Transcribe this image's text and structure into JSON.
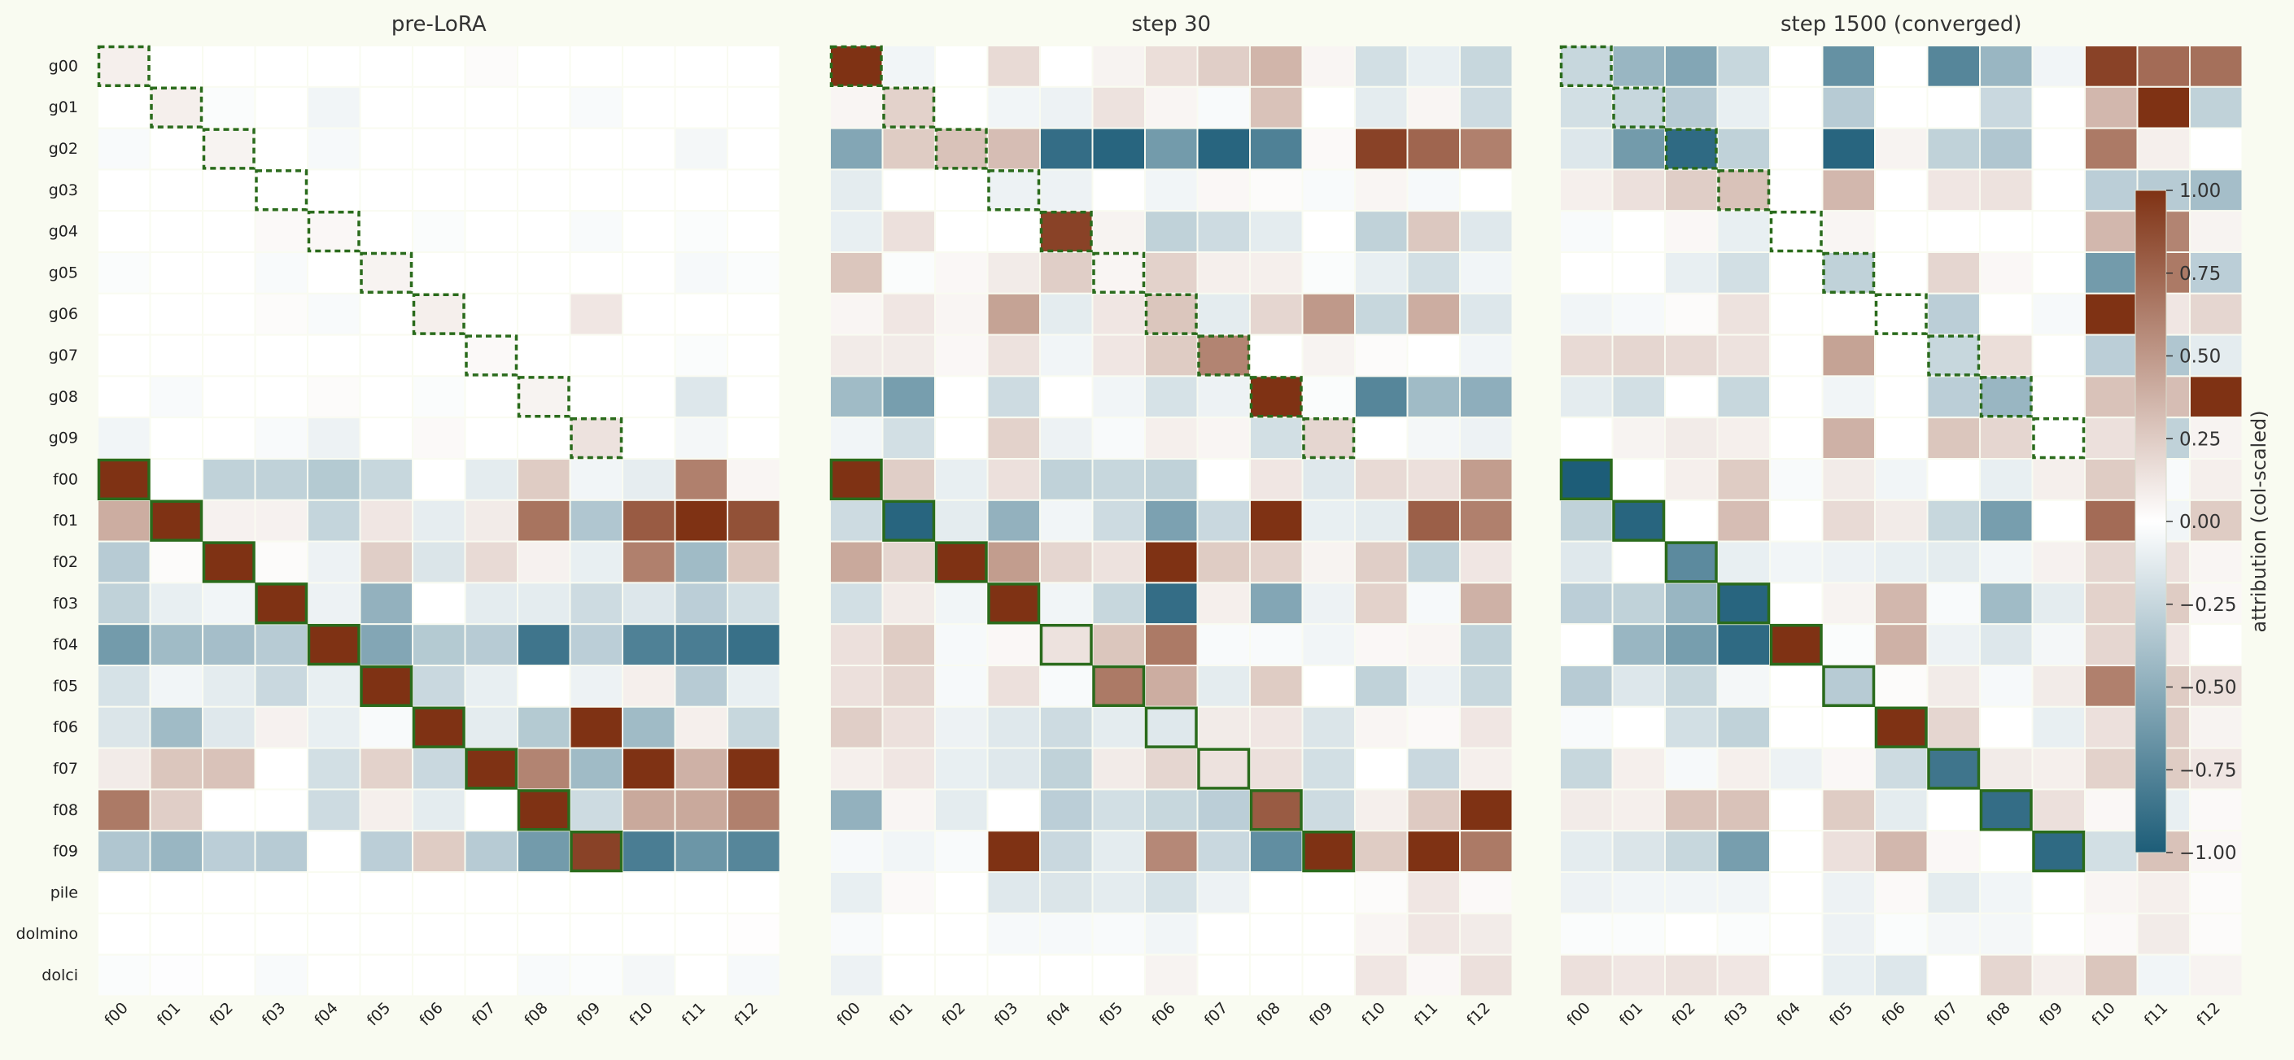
{
  "chart_data": {
    "type": "heatmap",
    "colormap": {
      "negative": "#1d5d78",
      "zero": "#ffffff",
      "positive": "#7f3214",
      "range": [
        -1.0,
        1.0
      ]
    },
    "highlight_color": "#2a6b1c",
    "rows": [
      "g00",
      "g01",
      "g02",
      "g03",
      "g04",
      "g05",
      "g06",
      "g07",
      "g08",
      "g09",
      "f00",
      "f01",
      "f02",
      "f03",
      "f04",
      "f05",
      "f06",
      "f07",
      "f08",
      "f09",
      "pile",
      "dolmino",
      "dolci"
    ],
    "columns": [
      "f00",
      "f01",
      "f02",
      "f03",
      "f04",
      "f05",
      "f06",
      "f07",
      "f08",
      "f09",
      "f10",
      "f11",
      "f12"
    ],
    "colorbar": {
      "label": "attribution (col-scaled)",
      "ticks": [
        "1.00",
        "0.75",
        "0.50",
        "0.25",
        "0.00",
        "−0.25",
        "−0.50",
        "−0.75",
        "−1.00"
      ],
      "tick_values": [
        1.0,
        0.75,
        0.5,
        0.25,
        0.0,
        -0.25,
        -0.5,
        -0.75,
        -1.0
      ],
      "range": [
        -1.0,
        1.0
      ]
    },
    "panels": [
      {
        "title": "pre-LoRA",
        "values": [
          [
            0.08,
            0,
            0,
            0,
            0,
            0,
            0,
            0.02,
            0,
            0,
            0,
            0,
            0
          ],
          [
            0,
            0.08,
            -0.02,
            0,
            -0.06,
            0,
            0,
            0,
            0,
            -0.03,
            0,
            0,
            0
          ],
          [
            -0.03,
            0,
            0.06,
            0,
            -0.04,
            0,
            0,
            0,
            0,
            0,
            0,
            -0.05,
            0
          ],
          [
            0,
            0,
            0,
            0,
            0,
            0,
            0,
            0,
            0,
            0,
            0,
            0,
            0
          ],
          [
            0,
            0,
            0,
            0.03,
            0.04,
            0,
            -0.02,
            0,
            0,
            -0.03,
            0,
            -0.02,
            0
          ],
          [
            -0.02,
            0,
            0,
            -0.03,
            0,
            0.06,
            0,
            0,
            0,
            0,
            0,
            -0.04,
            -0.02
          ],
          [
            0,
            0,
            0,
            0.02,
            -0.03,
            0,
            0.08,
            0,
            0,
            0.12,
            0,
            0,
            0
          ],
          [
            0,
            0,
            0,
            0,
            0,
            0,
            0,
            0.03,
            0,
            0,
            0,
            -0.02,
            0
          ],
          [
            0,
            -0.03,
            0,
            0,
            0.02,
            0,
            -0.02,
            0,
            0.06,
            0,
            0,
            -0.15,
            0
          ],
          [
            -0.06,
            0,
            0,
            -0.03,
            -0.08,
            0,
            0.03,
            0,
            0,
            0.14,
            0,
            -0.05,
            0
          ],
          [
            1.0,
            0,
            -0.28,
            -0.28,
            -0.33,
            -0.25,
            0,
            -0.12,
            0.25,
            -0.06,
            -0.11,
            0.62,
            0.05
          ],
          [
            0.4,
            1.0,
            0.07,
            0.07,
            -0.26,
            0.12,
            -0.11,
            0.1,
            0.68,
            -0.35,
            0.8,
            1.0,
            0.85
          ],
          [
            -0.32,
            0.02,
            1.0,
            0.02,
            -0.08,
            0.24,
            -0.16,
            0.18,
            0.07,
            -0.1,
            0.62,
            -0.42,
            0.28
          ],
          [
            -0.28,
            -0.1,
            -0.06,
            1.0,
            -0.08,
            -0.48,
            0,
            -0.12,
            -0.12,
            -0.22,
            -0.15,
            -0.3,
            -0.2
          ],
          [
            -0.62,
            -0.42,
            -0.4,
            -0.32,
            1.0,
            -0.55,
            -0.33,
            -0.32,
            -0.85,
            -0.3,
            -0.78,
            -0.8,
            -0.88
          ],
          [
            -0.18,
            -0.06,
            -0.12,
            -0.24,
            -0.1,
            1.0,
            -0.24,
            -0.1,
            0,
            -0.08,
            0.08,
            -0.32,
            -0.1
          ],
          [
            -0.16,
            -0.42,
            -0.14,
            0.07,
            -0.1,
            -0.03,
            1.0,
            -0.12,
            -0.33,
            1.0,
            -0.42,
            0.08,
            -0.25
          ],
          [
            0.1,
            0.28,
            0.3,
            0,
            -0.2,
            0.22,
            -0.24,
            1.0,
            0.6,
            -0.42,
            1.0,
            0.38,
            1.0
          ],
          [
            0.65,
            0.24,
            0,
            0,
            -0.22,
            0.08,
            -0.12,
            0,
            1.0,
            -0.22,
            0.42,
            0.42,
            0.62
          ],
          [
            -0.35,
            -0.45,
            -0.3,
            -0.32,
            0,
            -0.3,
            0.25,
            -0.32,
            -0.62,
            0.92,
            -0.8,
            -0.65,
            -0.75
          ],
          [
            0,
            0,
            0,
            0,
            0,
            0,
            0,
            0,
            0,
            0,
            0,
            0,
            0
          ],
          [
            0,
            0,
            0,
            0,
            0,
            0,
            0,
            0,
            0,
            0,
            0,
            0,
            0.01
          ],
          [
            -0.02,
            -0.01,
            0,
            -0.03,
            0,
            0,
            0,
            0,
            -0.03,
            -0.02,
            -0.05,
            0,
            -0.04
          ]
        ]
      },
      {
        "title": "step 30",
        "values": [
          [
            1.0,
            -0.06,
            0,
            0.18,
            0,
            0.06,
            0.16,
            0.24,
            0.36,
            0.05,
            -0.2,
            -0.1,
            -0.25
          ],
          [
            0.05,
            0.22,
            0,
            -0.06,
            -0.08,
            0.14,
            0.05,
            -0.03,
            0.3,
            0,
            -0.12,
            0.05,
            -0.22
          ],
          [
            -0.55,
            0.25,
            0.3,
            0.32,
            -0.9,
            -0.95,
            -0.62,
            -0.95,
            -0.78,
            0.03,
            0.92,
            0.75,
            0.62
          ],
          [
            -0.12,
            0,
            0,
            -0.08,
            -0.08,
            0,
            -0.06,
            0.04,
            0.02,
            -0.03,
            0.05,
            -0.04,
            0
          ],
          [
            -0.1,
            0.15,
            0,
            0,
            0.92,
            0.06,
            -0.28,
            -0.22,
            -0.12,
            0,
            -0.28,
            0.27,
            -0.14
          ],
          [
            0.28,
            -0.02,
            0.04,
            0.1,
            0.24,
            0.05,
            0.22,
            0.08,
            0.08,
            -0.02,
            -0.1,
            -0.2,
            -0.06
          ],
          [
            0.05,
            0.12,
            0.05,
            0.45,
            -0.12,
            0.12,
            0.28,
            -0.12,
            0.2,
            0.5,
            -0.25,
            0.4,
            -0.15
          ],
          [
            0.1,
            0.1,
            0.04,
            0.14,
            -0.06,
            0.12,
            0.25,
            0.6,
            0,
            0.06,
            0.02,
            0,
            -0.06
          ],
          [
            -0.42,
            -0.6,
            0,
            -0.22,
            0,
            -0.06,
            -0.18,
            -0.08,
            1.0,
            -0.02,
            -0.75,
            -0.42,
            -0.5
          ],
          [
            -0.06,
            -0.2,
            0,
            0.22,
            -0.08,
            -0.03,
            0.08,
            0.05,
            -0.2,
            0.2,
            0,
            -0.05,
            -0.08
          ],
          [
            1.0,
            0.24,
            -0.1,
            0.15,
            -0.28,
            -0.25,
            -0.28,
            0,
            0.12,
            -0.14,
            0.18,
            0.15,
            0.48
          ],
          [
            -0.22,
            -0.95,
            -0.12,
            -0.48,
            -0.06,
            -0.22,
            -0.58,
            -0.24,
            1.0,
            -0.1,
            -0.12,
            0.78,
            0.62
          ],
          [
            0.42,
            0.2,
            1.0,
            0.48,
            0.2,
            0.14,
            1.0,
            0.25,
            0.22,
            0.06,
            0.24,
            -0.28,
            0.12
          ],
          [
            -0.2,
            0.1,
            -0.06,
            1.0,
            -0.06,
            -0.25,
            -0.9,
            0.08,
            -0.55,
            -0.08,
            0.22,
            -0.04,
            0.38
          ],
          [
            0.15,
            0.25,
            -0.04,
            0.04,
            0.14,
            0.28,
            0.65,
            -0.03,
            -0.03,
            -0.06,
            0.04,
            0.05,
            -0.28
          ],
          [
            0.15,
            0.2,
            -0.04,
            0.15,
            -0.03,
            0.65,
            0.4,
            -0.12,
            0.25,
            0,
            -0.28,
            -0.08,
            -0.25
          ],
          [
            0.24,
            0.15,
            -0.08,
            -0.14,
            -0.22,
            -0.12,
            -0.14,
            0.1,
            0.12,
            -0.16,
            0.05,
            0.03,
            0.12
          ],
          [
            0.08,
            0.12,
            -0.1,
            -0.14,
            -0.28,
            0.1,
            0.2,
            0.14,
            0.15,
            -0.2,
            0,
            -0.24,
            0.08
          ],
          [
            -0.48,
            0.05,
            -0.12,
            0,
            -0.3,
            -0.2,
            -0.25,
            -0.3,
            0.8,
            -0.22,
            0.08,
            0.26,
            1.0
          ],
          [
            -0.04,
            -0.06,
            -0.03,
            1.0,
            -0.24,
            -0.12,
            0.58,
            -0.24,
            -0.7,
            1.0,
            0.25,
            1.0,
            0.65
          ],
          [
            -0.1,
            0.03,
            0,
            -0.14,
            -0.16,
            -0.12,
            -0.18,
            -0.08,
            0,
            0,
            0.02,
            0.12,
            0.03
          ],
          [
            -0.03,
            0,
            0,
            -0.04,
            -0.04,
            -0.03,
            -0.06,
            0,
            0,
            0,
            0.05,
            0.12,
            0.1
          ],
          [
            -0.08,
            0,
            0,
            0,
            0,
            0,
            0.06,
            0,
            0,
            0,
            0.12,
            0.04,
            0.15
          ]
        ]
      },
      {
        "title": "step 1500 (converged)",
        "values": [
          [
            -0.25,
            -0.45,
            -0.55,
            -0.25,
            0,
            -0.68,
            0,
            -0.75,
            -0.45,
            -0.06,
            0.92,
            0.72,
            0.7
          ],
          [
            -0.2,
            -0.25,
            -0.32,
            -0.1,
            0,
            -0.32,
            0,
            0,
            -0.24,
            0,
            0.35,
            1.0,
            -0.28
          ],
          [
            -0.15,
            -0.62,
            -0.92,
            -0.28,
            0,
            -0.95,
            0.06,
            -0.28,
            -0.35,
            0,
            0.65,
            0.08,
            0
          ],
          [
            0.08,
            0.15,
            0.24,
            0.3,
            0,
            0.35,
            0,
            0.12,
            0.14,
            0,
            -0.3,
            -0.32,
            -0.4
          ],
          [
            -0.03,
            0,
            0.04,
            -0.1,
            0,
            0.05,
            0,
            0,
            0,
            0,
            0.35,
            0.6,
            0.06
          ],
          [
            0,
            0,
            -0.1,
            -0.2,
            0,
            -0.28,
            0,
            0.2,
            0.04,
            0,
            -0.62,
            0.65,
            -0.3
          ],
          [
            -0.06,
            -0.04,
            0.02,
            0.14,
            0,
            0,
            0,
            -0.3,
            0,
            -0.04,
            1.0,
            0.12,
            0.2
          ],
          [
            0.18,
            0.2,
            0.18,
            0.14,
            0,
            0.45,
            0,
            -0.25,
            0.16,
            0,
            -0.3,
            -0.35,
            -0.12
          ],
          [
            -0.12,
            -0.2,
            0,
            -0.25,
            0,
            -0.06,
            0,
            -0.3,
            -0.45,
            0,
            0.3,
            0.32,
            1.0
          ],
          [
            0,
            0.06,
            0.1,
            0.08,
            0,
            0.38,
            0,
            0.28,
            0.2,
            0,
            0.15,
            -0.28,
            0.06
          ],
          [
            -1.0,
            0,
            0.08,
            0.25,
            -0.03,
            0.1,
            -0.06,
            0,
            -0.1,
            0.08,
            0.25,
            -0.03,
            0.08
          ],
          [
            -0.28,
            -0.95,
            0,
            0.32,
            0,
            0.18,
            0.1,
            -0.25,
            -0.6,
            0,
            0.72,
            -0.06,
            0.25
          ],
          [
            -0.14,
            0,
            -0.72,
            -0.1,
            -0.06,
            -0.08,
            -0.1,
            -0.12,
            -0.06,
            0.07,
            0.2,
            0.15,
            0.05
          ],
          [
            -0.3,
            -0.28,
            -0.45,
            -0.95,
            0,
            0.06,
            0.35,
            -0.03,
            -0.42,
            -0.12,
            0.22,
            0.25,
            0.04
          ],
          [
            0,
            -0.45,
            -0.6,
            -0.92,
            1.0,
            -0.02,
            0.38,
            -0.08,
            -0.15,
            -0.05,
            0.2,
            0.12,
            0
          ],
          [
            -0.32,
            -0.15,
            -0.25,
            -0.05,
            0,
            -0.32,
            0.02,
            0.1,
            -0.04,
            0.1,
            0.62,
            0.25,
            0.15
          ],
          [
            -0.03,
            0,
            -0.2,
            -0.28,
            0,
            0,
            1.0,
            0.2,
            0,
            -0.1,
            0.15,
            0.24,
            0.06
          ],
          [
            -0.25,
            0.08,
            -0.04,
            0.08,
            -0.08,
            0.04,
            -0.22,
            -0.85,
            0.1,
            0.08,
            0.22,
            0.25,
            0.12
          ],
          [
            0.1,
            0.08,
            0.3,
            0.3,
            0,
            0.25,
            -0.12,
            0,
            -0.9,
            0.15,
            0.04,
            -0.1,
            0.03
          ],
          [
            -0.12,
            -0.16,
            -0.25,
            -0.6,
            0,
            0.15,
            0.35,
            0.04,
            0,
            -0.92,
            -0.2,
            0.3,
            0.04
          ],
          [
            -0.08,
            -0.06,
            -0.06,
            -0.06,
            0,
            -0.08,
            0.03,
            -0.12,
            -0.06,
            0,
            0.05,
            0.08,
            0.02
          ],
          [
            -0.02,
            -0.02,
            0,
            -0.02,
            0,
            -0.08,
            -0.02,
            -0.05,
            -0.05,
            0,
            0.03,
            0.1,
            0.02
          ],
          [
            0.15,
            0.12,
            0.14,
            0.12,
            0,
            -0.1,
            -0.15,
            0,
            0.2,
            0.08,
            0.28,
            -0.06,
            0.06
          ]
        ]
      }
    ]
  }
}
